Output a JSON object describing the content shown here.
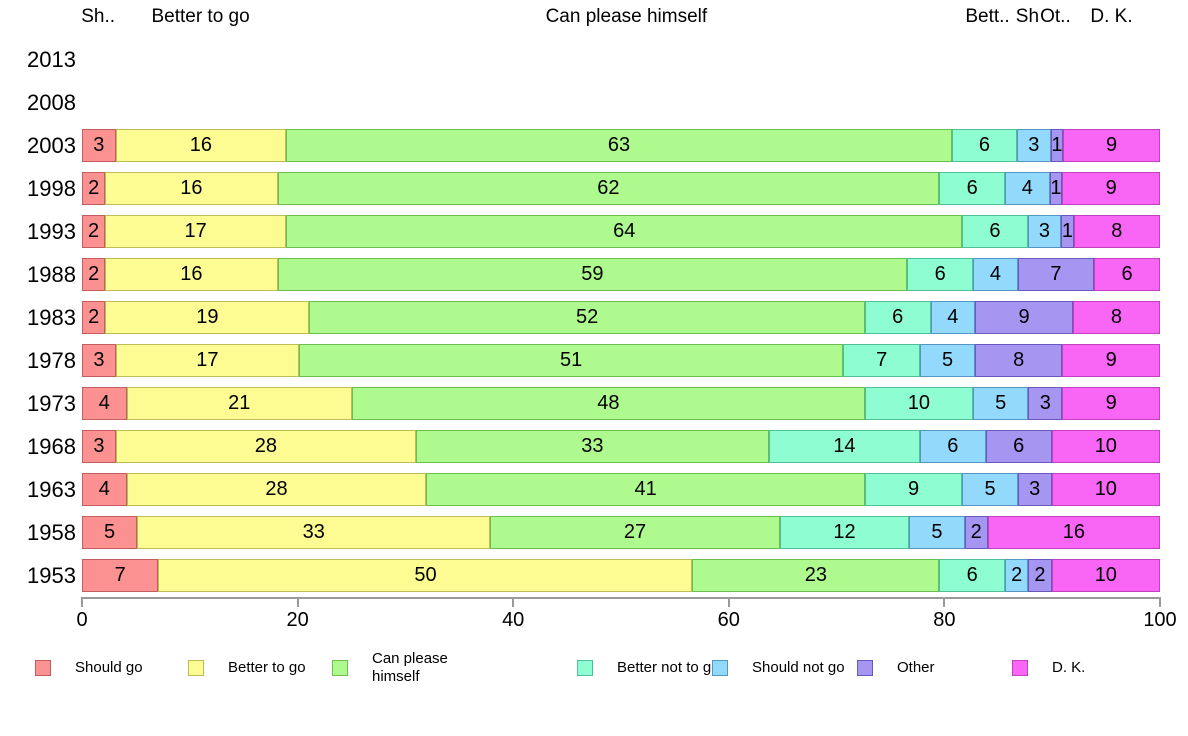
{
  "chart_data": {
    "type": "bar",
    "stacked": true,
    "orientation": "horizontal",
    "title": "",
    "categories": [
      "2013",
      "2008",
      "2003",
      "1998",
      "1993",
      "1988",
      "1983",
      "1978",
      "1973",
      "1968",
      "1963",
      "1958",
      "1953"
    ],
    "series": [
      {
        "name": "Should go",
        "color": "#FC9191",
        "border": "#C25E5E",
        "values": [
          null,
          null,
          3,
          2,
          2,
          2,
          2,
          3,
          4,
          3,
          4,
          5,
          7
        ]
      },
      {
        "name": "Better to go",
        "color": "#FCFC92",
        "border": "#BDBD58",
        "values": [
          null,
          null,
          16,
          16,
          17,
          16,
          19,
          17,
          21,
          28,
          28,
          33,
          50
        ]
      },
      {
        "name": "Can please himself",
        "color": "#AFFA8F",
        "border": "#6DBE52",
        "values": [
          null,
          null,
          63,
          62,
          64,
          59,
          52,
          51,
          48,
          33,
          41,
          27,
          23
        ]
      },
      {
        "name": "Better not to go",
        "color": "#8FFDD2",
        "border": "#4FBF97",
        "values": [
          null,
          null,
          6,
          6,
          6,
          6,
          6,
          7,
          10,
          14,
          9,
          12,
          6
        ]
      },
      {
        "name": "Should not go",
        "color": "#92D9FC",
        "border": "#5795C4",
        "values": [
          null,
          null,
          3,
          4,
          3,
          4,
          4,
          5,
          5,
          6,
          5,
          5,
          2
        ]
      },
      {
        "name": "Other",
        "color": "#A695F1",
        "border": "#6A58BD",
        "values": [
          null,
          null,
          1,
          1,
          1,
          7,
          9,
          8,
          3,
          6,
          3,
          2,
          2
        ]
      },
      {
        "name": "D. K.",
        "color": "#F966F6",
        "border": "#C341BF",
        "values": [
          null,
          null,
          9,
          9,
          8,
          6,
          8,
          9,
          9,
          10,
          10,
          16,
          10
        ]
      }
    ],
    "x_axis": {
      "ticks": [
        "0",
        "20",
        "40",
        "60",
        "80",
        "100"
      ],
      "range": [
        0,
        100
      ],
      "grid": false
    },
    "legend_position": "bottom",
    "column_headers": [
      {
        "text": "Sh..",
        "x_pct": 1.5
      },
      {
        "text": "Better to go",
        "x_pct": 11
      },
      {
        "text": "Can please himself",
        "x_pct": 50.5
      },
      {
        "text": "Bett..",
        "x_pct": 84
      },
      {
        "text": "Sh",
        "x_pct": 87.7
      },
      {
        "text": "Ot..",
        "x_pct": 90.3
      },
      {
        "text": "D. K.",
        "x_pct": 95.5
      }
    ]
  }
}
